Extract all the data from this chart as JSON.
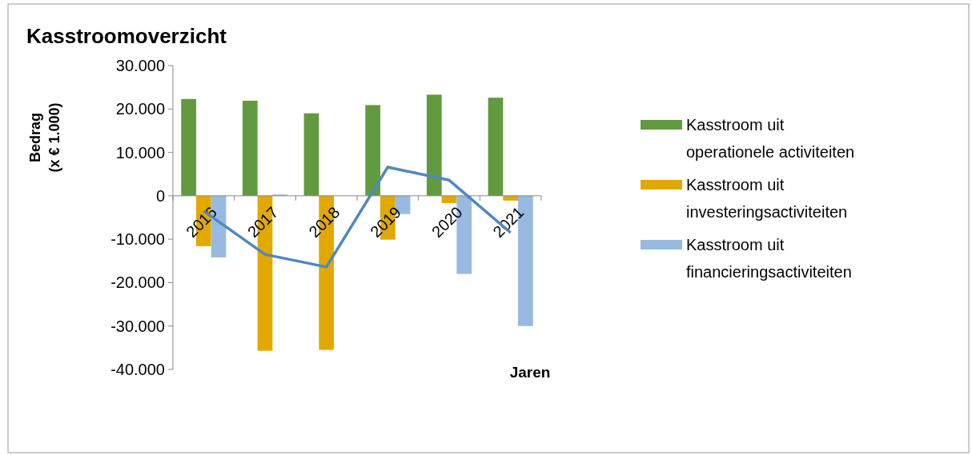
{
  "chart_data": {
    "type": "bar",
    "title": "Kasstroomoverzicht",
    "xlabel": "Jaren",
    "ylabel": "Bedrag\n(x € 1.000)",
    "categories": [
      "2016",
      "2017",
      "2018",
      "2019",
      "2020",
      "2021"
    ],
    "series": [
      {
        "name": "Kasstroom uit operationele activiteiten",
        "color": "#629a3f",
        "values": [
          22300,
          21900,
          19000,
          20900,
          23300,
          22600
        ]
      },
      {
        "name": "Kasstroom uit investeringsactiviteiten",
        "color": "#e1a900",
        "values": [
          -11600,
          -35700,
          -35500,
          -10100,
          -1700,
          -1100
        ]
      },
      {
        "name": "Kasstroom uit financieringsactiviteiten",
        "color": "#98bae1",
        "values": [
          -14200,
          300,
          null,
          -4200,
          -18000,
          -30000
        ]
      },
      {
        "type": "line",
        "color": "#4f88be",
        "values": [
          -3500,
          -13500,
          -16400,
          6600,
          3600,
          -8500
        ]
      }
    ],
    "ylim": [
      -40000,
      30000
    ],
    "yticks": [
      {
        "value": -40000,
        "label": "-40.000"
      },
      {
        "value": -30000,
        "label": "-30.000"
      },
      {
        "value": -20000,
        "label": "-20.000"
      },
      {
        "value": -10000,
        "label": "-10.000"
      },
      0,
      {
        "value": 10000,
        "label": "10.000"
      },
      {
        "value": 20000,
        "label": "20.000"
      },
      {
        "value": 30000,
        "label": "30.000"
      }
    ],
    "grid": false,
    "legend": "right"
  }
}
